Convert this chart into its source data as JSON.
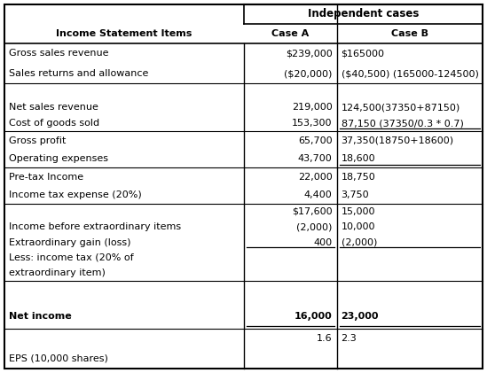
{
  "title": "Independent cases",
  "header1": "Income Statement Items",
  "header2": "Case A",
  "header3": "Case B",
  "background": "#ffffff",
  "text_color": "#000000",
  "fontsize": 8.0,
  "col_div1": 0.5,
  "col_div2": 0.695,
  "sections": [
    {
      "left_lines": [
        "Gross sales revenue",
        "Sales returns and allowance"
      ],
      "a_lines": [
        "$239,000",
        "($20,000)"
      ],
      "b_lines": [
        "$165000",
        "($40,500) (165000-124500)"
      ],
      "underline_a": false,
      "underline_b": false,
      "sep_below": false
    },
    {
      "left_lines": [
        "",
        "Net sales revenue",
        "Cost of goods sold"
      ],
      "a_lines": [
        "",
        "219,000",
        "153,300"
      ],
      "b_lines": [
        "",
        "124,500(37350+87150)",
        "87,150 (37350/0.3 * 0.7)"
      ],
      "underline_a": false,
      "underline_b_line": 2,
      "sep_below": true
    },
    {
      "left_lines": [
        "Gross profit",
        "Operating expenses"
      ],
      "a_lines": [
        "65,700",
        "43,700"
      ],
      "b_lines": [
        "37,350(18750+18600)",
        "18,600"
      ],
      "underline_a": false,
      "underline_b_line": 1,
      "sep_below": true
    },
    {
      "left_lines": [
        "Pre-tax Income",
        "Income tax expense (20%)"
      ],
      "a_lines": [
        "22,000",
        "4,400"
      ],
      "b_lines": [
        "18,750",
        "3,750"
      ],
      "underline_a": false,
      "underline_b": false,
      "sep_below": true
    },
    {
      "left_lines": [
        "",
        "Income before extraordinary items",
        "Extraordinary gain (loss)",
        "Less: income tax (20% of",
        "extraordinary item)"
      ],
      "a_lines": [
        "$17,600",
        "(2,000)",
        "400",
        "",
        ""
      ],
      "b_lines": [
        "15,000",
        "10,000",
        "(2,000)",
        "",
        ""
      ],
      "underline_a_line": 2,
      "underline_b_line": 2,
      "sep_below": false
    },
    {
      "left_lines": [
        "",
        "Net income"
      ],
      "a_lines": [
        "",
        "16,000"
      ],
      "b_lines": [
        "",
        "23,000"
      ],
      "underline_a_line": 1,
      "underline_b_line": 1,
      "bold_line": 1,
      "sep_below": false
    },
    {
      "left_lines": [
        "",
        "EPS (10,000 shares)"
      ],
      "a_lines": [
        "1.6",
        ""
      ],
      "b_lines": [
        "2.3",
        ""
      ],
      "underline_a": false,
      "underline_b": false,
      "sep_below": false
    }
  ]
}
